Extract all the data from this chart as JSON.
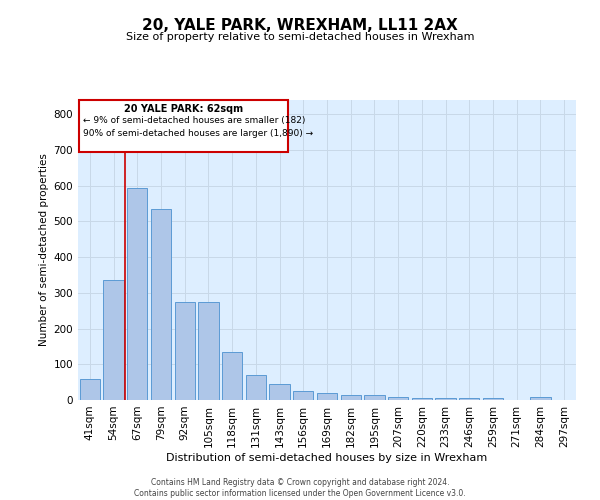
{
  "title": "20, YALE PARK, WREXHAM, LL11 2AX",
  "subtitle": "Size of property relative to semi-detached houses in Wrexham",
  "xlabel": "Distribution of semi-detached houses by size in Wrexham",
  "ylabel": "Number of semi-detached properties",
  "categories": [
    "41sqm",
    "54sqm",
    "67sqm",
    "79sqm",
    "92sqm",
    "105sqm",
    "118sqm",
    "131sqm",
    "143sqm",
    "156sqm",
    "169sqm",
    "182sqm",
    "195sqm",
    "207sqm",
    "220sqm",
    "233sqm",
    "246sqm",
    "259sqm",
    "271sqm",
    "284sqm",
    "297sqm"
  ],
  "values": [
    60,
    335,
    595,
    535,
    275,
    275,
    135,
    70,
    45,
    25,
    20,
    15,
    13,
    8,
    7,
    6,
    6,
    5,
    0,
    8,
    0
  ],
  "bar_color": "#aec6e8",
  "bar_edge_color": "#5b9bd5",
  "vline_color": "#cc0000",
  "annotation_title": "20 YALE PARK: 62sqm",
  "annotation_line1": "← 9% of semi-detached houses are smaller (182)",
  "annotation_line2": "90% of semi-detached houses are larger (1,890) →",
  "annotation_box_color": "#cc0000",
  "ylim": [
    0,
    840
  ],
  "yticks": [
    0,
    100,
    200,
    300,
    400,
    500,
    600,
    700,
    800
  ],
  "grid_color": "#c8d8e8",
  "background_color": "#ddeeff",
  "footer_line1": "Contains HM Land Registry data © Crown copyright and database right 2024.",
  "footer_line2": "Contains public sector information licensed under the Open Government Licence v3.0."
}
